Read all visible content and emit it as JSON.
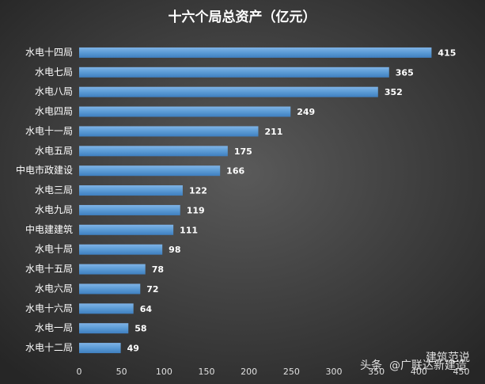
{
  "chart_data": {
    "type": "barh",
    "title": "十六个局总资产（亿元）",
    "categories": [
      "水电十四局",
      "水电七局",
      "水电八局",
      "水电四局",
      "水电十一局",
      "水电五局",
      "中电市政建设",
      "水电三局",
      "水电九局",
      "中电建建筑",
      "水电十局",
      "水电十五局",
      "水电六局",
      "水电十六局",
      "水电一局",
      "水电十二局"
    ],
    "values": [
      415,
      365,
      352,
      249,
      211,
      175,
      166,
      122,
      119,
      111,
      98,
      78,
      72,
      64,
      58,
      49
    ],
    "color": "#5b9bd5",
    "xlim": [
      0,
      450
    ],
    "xticks": [
      0,
      50,
      100,
      150,
      200,
      250,
      300,
      350,
      400,
      450
    ],
    "watermark": [
      "头条",
      "@广联达新建造",
      "建筑范说"
    ]
  }
}
